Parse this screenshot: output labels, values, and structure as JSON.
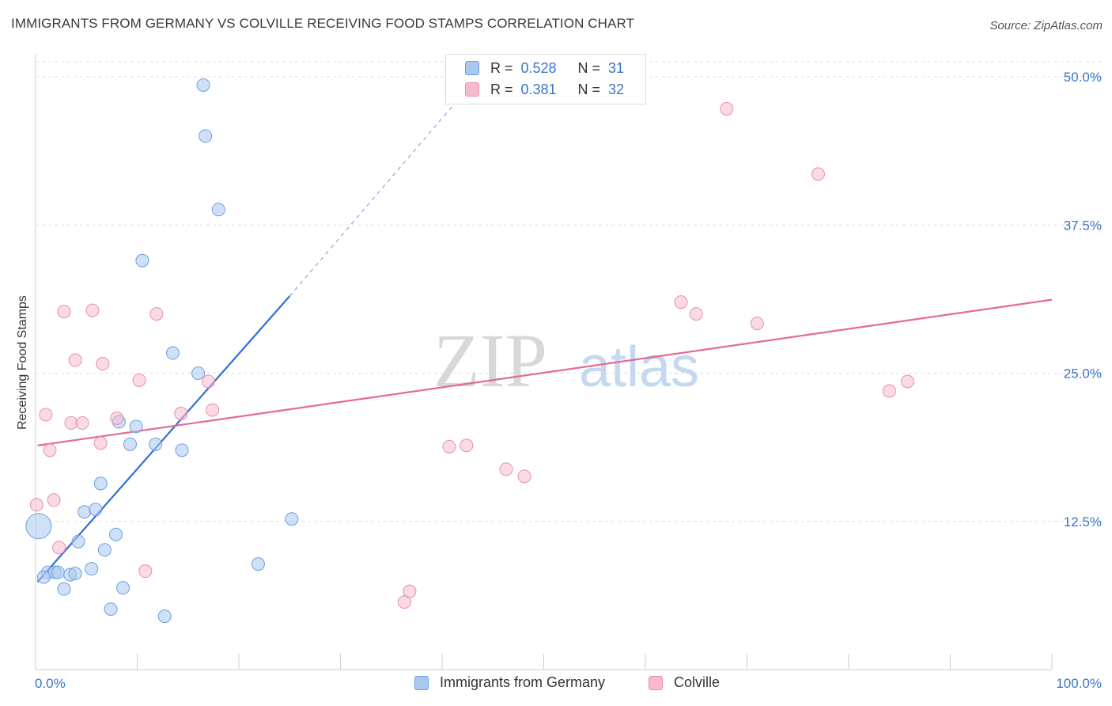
{
  "title": "IMMIGRANTS FROM GERMANY VS COLVILLE RECEIVING FOOD STAMPS CORRELATION CHART",
  "source": "Source: ZipAtlas.com",
  "watermark": {
    "zip": "ZIP",
    "atlas": "atlas"
  },
  "legend": {
    "r_label": "R =",
    "n_label": "N =",
    "rows": [
      {
        "r": "0.528",
        "n": "31",
        "color": "#a9c8f0"
      },
      {
        "r": "0.381",
        "n": "32",
        "color": "#f6bccd"
      }
    ]
  },
  "chart_data": {
    "type": "scatter",
    "title": "IMMIGRANTS FROM GERMANY VS COLVILLE RECEIVING FOOD STAMPS CORRELATION CHART",
    "xlabel": "",
    "ylabel": "Receiving Food Stamps",
    "xlim": [
      0,
      100
    ],
    "ylim": [
      0,
      52
    ],
    "x_tick_labels": [
      "0.0%",
      "100.0%"
    ],
    "y_ticks": [
      12.5,
      25.0,
      37.5,
      50.0
    ],
    "y_tick_labels": [
      "12.5%",
      "25.0%",
      "37.5%",
      "50.0%"
    ],
    "grid": true,
    "legend_position": "top-center",
    "series": [
      {
        "name": "Immigrants from Germany",
        "color": "#a9c8f0",
        "stroke": "#6e9fdc",
        "line_color": "#2f6fd6",
        "trend": {
          "x0": 0.2,
          "y0": 7.4,
          "x1": 25.0,
          "y1": 31.5,
          "x_ext": 42.0,
          "y_ext": 48.5
        },
        "points": [
          [
            16.5,
            49.3
          ],
          [
            16.7,
            45.0
          ],
          [
            18.0,
            38.8
          ],
          [
            10.5,
            34.5
          ],
          [
            13.5,
            26.7
          ],
          [
            16.0,
            25.0
          ],
          [
            8.2,
            20.9
          ],
          [
            9.9,
            20.5
          ],
          [
            9.3,
            19.0
          ],
          [
            11.8,
            19.0
          ],
          [
            14.4,
            18.5
          ],
          [
            6.4,
            15.7
          ],
          [
            4.8,
            13.3
          ],
          [
            5.9,
            13.5
          ],
          [
            7.9,
            11.4
          ],
          [
            25.2,
            12.7
          ],
          [
            4.2,
            10.8
          ],
          [
            6.8,
            10.1
          ],
          [
            21.9,
            8.9
          ],
          [
            5.5,
            8.5
          ],
          [
            1.2,
            8.2
          ],
          [
            1.9,
            8.2
          ],
          [
            2.2,
            8.2
          ],
          [
            3.4,
            8.0
          ],
          [
            3.9,
            8.1
          ],
          [
            0.8,
            7.8
          ],
          [
            8.6,
            6.9
          ],
          [
            2.8,
            6.8
          ],
          [
            7.4,
            5.1
          ],
          [
            12.7,
            4.5
          ],
          [
            0.3,
            12.1
          ]
        ],
        "sizes": [
          8,
          8,
          8,
          8,
          8,
          8,
          8,
          8,
          8,
          8,
          8,
          8,
          8,
          8,
          8,
          8,
          8,
          8,
          8,
          8,
          8,
          8,
          8,
          8,
          8,
          8,
          8,
          8,
          8,
          8,
          16
        ]
      },
      {
        "name": "Colville",
        "color": "#f6bccd",
        "stroke": "#ea8fab",
        "line_color": "#e56b93",
        "trend": {
          "x0": 0.2,
          "y0": 18.9,
          "x1": 100.0,
          "y1": 31.2
        },
        "points": [
          [
            68.0,
            47.3
          ],
          [
            77.0,
            41.8
          ],
          [
            5.6,
            30.3
          ],
          [
            2.8,
            30.2
          ],
          [
            11.9,
            30.0
          ],
          [
            63.5,
            31.0
          ],
          [
            65.0,
            30.0
          ],
          [
            71.0,
            29.2
          ],
          [
            3.9,
            26.1
          ],
          [
            6.6,
            25.8
          ],
          [
            10.2,
            24.4
          ],
          [
            17.0,
            24.3
          ],
          [
            84.0,
            23.5
          ],
          [
            85.8,
            24.3
          ],
          [
            1.0,
            21.5
          ],
          [
            3.5,
            20.8
          ],
          [
            4.6,
            20.8
          ],
          [
            8.0,
            21.2
          ],
          [
            14.3,
            21.6
          ],
          [
            17.4,
            21.9
          ],
          [
            6.4,
            19.1
          ],
          [
            1.4,
            18.5
          ],
          [
            40.7,
            18.8
          ],
          [
            42.4,
            18.9
          ],
          [
            46.3,
            16.9
          ],
          [
            48.1,
            16.3
          ],
          [
            0.1,
            13.9
          ],
          [
            1.8,
            14.3
          ],
          [
            2.3,
            10.3
          ],
          [
            10.8,
            8.3
          ],
          [
            36.3,
            5.7
          ],
          [
            36.8,
            6.6
          ]
        ]
      }
    ]
  }
}
